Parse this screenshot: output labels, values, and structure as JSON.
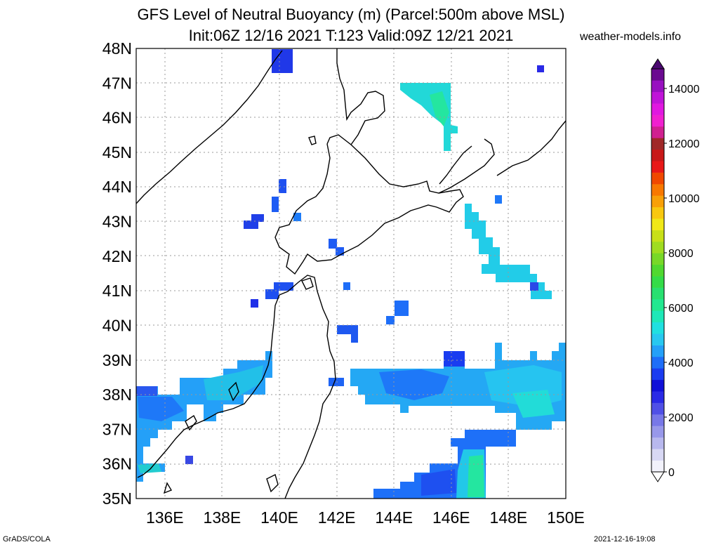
{
  "title_line1": "GFS Level of Neutral Buoyancy (m) (Parcel:500m above MSL)",
  "title_line2": "Init:06Z 12/16 2021 T:123 Valid:09Z 12/21 2021",
  "site_label": "weather-models.info",
  "footer_left": "GrADS/COLA",
  "footer_right": "2021-12-16-19:08",
  "map": {
    "lon_range": [
      135,
      150
    ],
    "lat_range": [
      35,
      48
    ],
    "lat_labels": [
      "35N",
      "36N",
      "37N",
      "38N",
      "39N",
      "40N",
      "41N",
      "42N",
      "43N",
      "44N",
      "45N",
      "46N",
      "47N",
      "48N"
    ],
    "lon_labels": [
      "136E",
      "138E",
      "140E",
      "142E",
      "144E",
      "146E",
      "148E",
      "150E"
    ]
  },
  "colorbar": {
    "labels": [
      "0",
      "2000",
      "4000",
      "6000",
      "8000",
      "10000",
      "12000",
      "14000"
    ],
    "colors": [
      "#f2f2fb",
      "#d8d8f4",
      "#b8b8ee",
      "#9898ea",
      "#7878e8",
      "#5050e6",
      "#2a2ae6",
      "#1010d8",
      "#1a3cf0",
      "#1e6ef8",
      "#24a0f8",
      "#28c8f0",
      "#20e0e0",
      "#1ee8b8",
      "#22e890",
      "#28e070",
      "#34dc48",
      "#50d830",
      "#78d828",
      "#a0dc20",
      "#c8e018",
      "#f0e818",
      "#f8c810",
      "#f8a008",
      "#f87800",
      "#f04800",
      "#e81818",
      "#c81818",
      "#a02828",
      "#d02090",
      "#f020d0",
      "#e018e0",
      "#c014d8",
      "#9810c0",
      "#6a0a90"
    ]
  }
}
